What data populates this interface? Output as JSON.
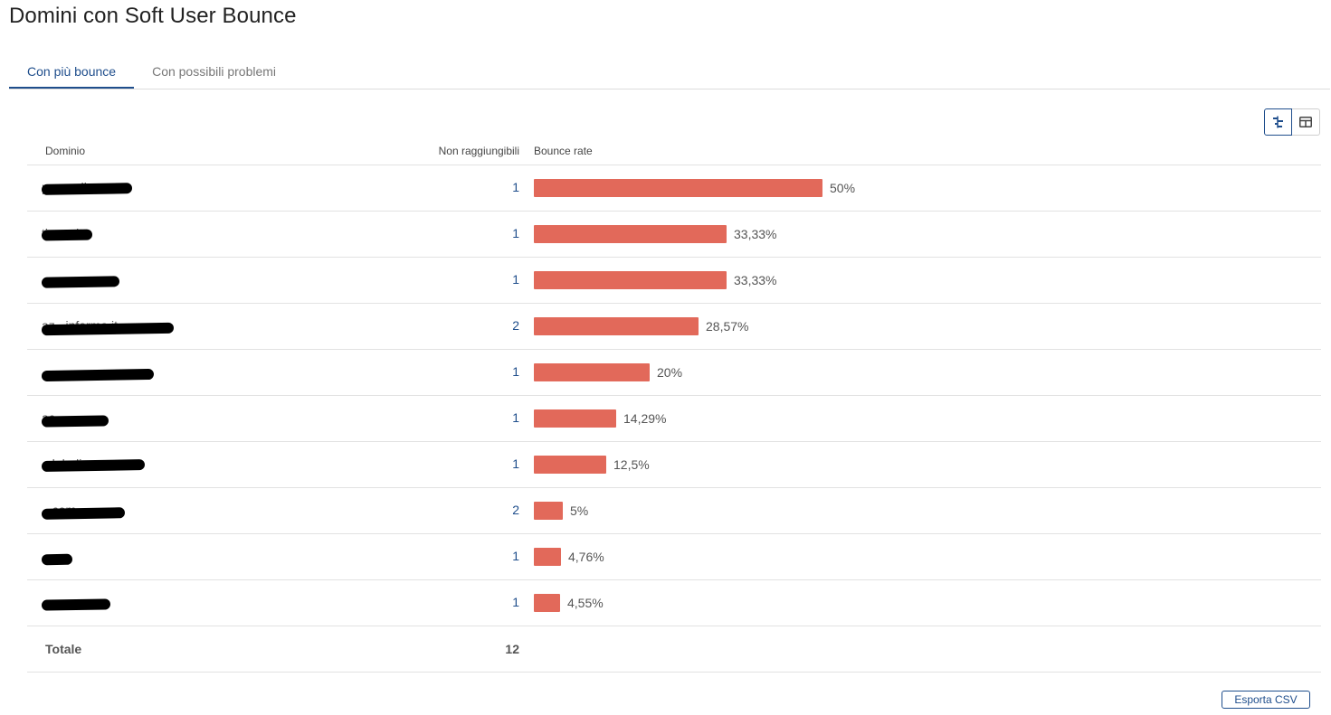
{
  "page": {
    "title": "Domini con Soft User Bounce"
  },
  "tabs": [
    {
      "label": "Con più bounce",
      "active": true
    },
    {
      "label": "Con possibili problemi",
      "active": false
    }
  ],
  "view_toggle": {
    "active": "bar-view"
  },
  "table": {
    "columns": {
      "domain": "Dominio",
      "unreachable": "Non raggiungibili",
      "bounce_rate": "Bounce rate"
    },
    "max_rate": 50,
    "rows": [
      {
        "domain": "p...media.com",
        "unreachable": "1",
        "rate": 50,
        "rate_label": "50%"
      },
      {
        "domain": "tigem.it",
        "unreachable": "1",
        "rate": 33.33,
        "rate_label": "33,33%"
      },
      {
        "domain": "",
        "unreachable": "1",
        "rate": 33.33,
        "rate_label": "33,33%"
      },
      {
        "domain": "az...informa.it",
        "unreachable": "2",
        "rate": 28.57,
        "rate_label": "28,57%"
      },
      {
        "domain": "",
        "unreachable": "1",
        "rate": 20,
        "rate_label": "20%"
      },
      {
        "domain": "ac...",
        "unreachable": "1",
        "rate": 14.29,
        "rate_label": "14,29%"
      },
      {
        "domain": "...laboli.com",
        "unreachable": "1",
        "rate": 12.5,
        "rate_label": "12,5%"
      },
      {
        "domain": "...com",
        "unreachable": "2",
        "rate": 5,
        "rate_label": "5%"
      },
      {
        "domain": "",
        "unreachable": "1",
        "rate": 4.76,
        "rate_label": "4,76%"
      },
      {
        "domain": "",
        "unreachable": "1",
        "rate": 4.55,
        "rate_label": "4,55%"
      }
    ],
    "total": {
      "label": "Totale",
      "value": "12"
    }
  },
  "export": {
    "label": "Esporta CSV"
  },
  "colors": {
    "bar": "#e2695a",
    "accent": "#1f4e8c"
  }
}
